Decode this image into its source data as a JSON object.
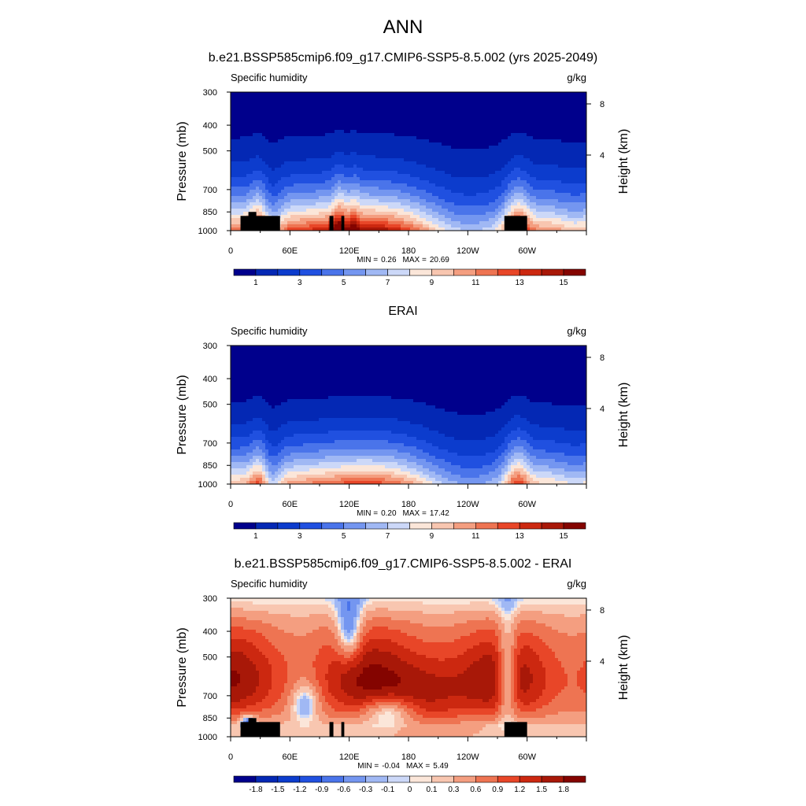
{
  "page_title": "ANN",
  "chart_data": [
    {
      "type": "heatmap",
      "title": "b.e21.BSSP585cmip6.f09_g17.CMIP6-SSP5-8.5.002 (yrs 2025-2049)",
      "field_label": "Specific humidity",
      "units": "g/kg",
      "ylabel": "Pressure (mb)",
      "ylabel_right": "Height (km)",
      "x_ticks": [
        "0",
        "60E",
        "120E",
        "180",
        "120W",
        "60W"
      ],
      "y_ticks": [
        "300",
        "400",
        "500",
        "700",
        "850",
        "1000"
      ],
      "y_ticks_right": [
        "8",
        "4"
      ],
      "min_label": "MIN =",
      "min_value": "0.26",
      "max_label": "MAX =",
      "max_value": "20.69",
      "colorbar_labels": [
        "1",
        "3",
        "5",
        "7",
        "9",
        "11",
        "13",
        "15"
      ],
      "colorbar_colors": [
        "#00008c",
        "#0428b4",
        "#0c3ccd",
        "#2050e0",
        "#4a74ea",
        "#7496f0",
        "#a0b8f4",
        "#ccd8f8",
        "#fbe6d9",
        "#f8c6b0",
        "#f49e80",
        "#ee7452",
        "#e84628",
        "#cc2810",
        "#a81808",
        "#840400"
      ],
      "field_kind": "model",
      "terrain": true
    },
    {
      "type": "heatmap",
      "title": "ERAI",
      "field_label": "Specific humidity",
      "units": "g/kg",
      "ylabel": "Pressure (mb)",
      "ylabel_right": "Height (km)",
      "x_ticks": [
        "0",
        "60E",
        "120E",
        "180",
        "120W",
        "60W"
      ],
      "y_ticks": [
        "300",
        "400",
        "500",
        "700",
        "850",
        "1000"
      ],
      "y_ticks_right": [
        "8",
        "4"
      ],
      "min_label": "MIN =",
      "min_value": "0.20",
      "max_label": "MAX =",
      "max_value": "17.42",
      "colorbar_labels": [
        "1",
        "3",
        "5",
        "7",
        "9",
        "11",
        "13",
        "15"
      ],
      "colorbar_colors": [
        "#00008c",
        "#0428b4",
        "#0c3ccd",
        "#2050e0",
        "#4a74ea",
        "#7496f0",
        "#a0b8f4",
        "#ccd8f8",
        "#fbe6d9",
        "#f8c6b0",
        "#f49e80",
        "#ee7452",
        "#e84628",
        "#cc2810",
        "#a81808",
        "#840400"
      ],
      "field_kind": "obs",
      "terrain": false
    },
    {
      "type": "heatmap",
      "title": "b.e21.BSSP585cmip6.f09_g17.CMIP6-SSP5-8.5.002 - ERAI",
      "field_label": "Specific humidity",
      "units": "g/kg",
      "ylabel": "Pressure (mb)",
      "ylabel_right": "Height (km)",
      "x_ticks": [
        "0",
        "60E",
        "120E",
        "180",
        "120W",
        "60W"
      ],
      "y_ticks": [
        "300",
        "400",
        "500",
        "700",
        "850",
        "1000"
      ],
      "y_ticks_right": [
        "8",
        "4"
      ],
      "min_label": "MIN =",
      "min_value": "-0.04",
      "max_label": "MAX =",
      "max_value": "5.49",
      "colorbar_labels": [
        "-1.8",
        "-1.5",
        "-1.2",
        "-0.9",
        "-0.6",
        "-0.3",
        "-0.1",
        "0",
        "0.1",
        "0.3",
        "0.6",
        "0.9",
        "1.2",
        "1.5",
        "1.8"
      ],
      "colorbar_colors": [
        "#00008c",
        "#0428b4",
        "#0c3ccd",
        "#2050e0",
        "#4a74ea",
        "#7496f0",
        "#a0b8f4",
        "#ccd8f8",
        "#fbe6d9",
        "#f8c6b0",
        "#f49e80",
        "#ee7452",
        "#e84628",
        "#cc2810",
        "#a81808",
        "#840400"
      ],
      "field_kind": "diff",
      "terrain": true
    }
  ]
}
